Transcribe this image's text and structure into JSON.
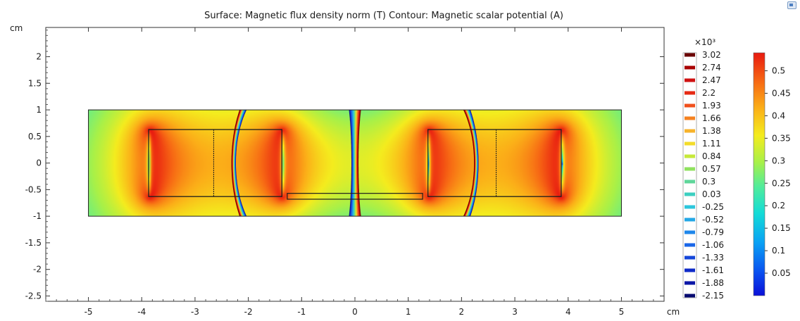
{
  "chart_data": {
    "type": "heatmap",
    "title": "Surface: Magnetic flux density norm (T)  Contour: Magnetic scalar potential (A)",
    "x_unit": "cm",
    "y_unit": "cm",
    "xlim": [
      -5.8,
      5.8
    ],
    "ylim": [
      -2.6,
      2.55
    ],
    "x_ticks": [
      -5,
      -4,
      -3,
      -2,
      -1,
      0,
      1,
      2,
      3,
      4,
      5
    ],
    "y_ticks": [
      2,
      1.5,
      1,
      0.5,
      0,
      -0.5,
      -1,
      -1.5,
      -2,
      -2.5
    ],
    "domain": {
      "x": [
        -5,
        5
      ],
      "y": [
        -1,
        1
      ]
    },
    "magnets": [
      {
        "x": [
          -3.87,
          -1.37
        ],
        "y": [
          -0.63,
          0.63
        ],
        "divider_x": -2.65
      },
      {
        "x": [
          1.37,
          3.87
        ],
        "y": [
          -0.63,
          0.63
        ],
        "divider_x": 2.65
      }
    ],
    "flux_plate": {
      "x": [
        -1.27,
        1.27
      ],
      "y": [
        -0.68,
        -0.57
      ]
    },
    "surface_legend": {
      "quantity": "Magnetic flux density norm (T)",
      "colormap": "rainbow",
      "ticks": [
        0.5,
        0.45,
        0.4,
        0.35,
        0.3,
        0.25,
        0.2,
        0.15,
        0.1,
        0.05
      ],
      "range": [
        0.0,
        0.54
      ]
    },
    "contour_legend": {
      "quantity": "Magnetic scalar potential (A)",
      "multiplier": "×10³",
      "levels": [
        3.02,
        2.74,
        2.47,
        2.2,
        1.93,
        1.66,
        1.38,
        1.11,
        0.84,
        0.57,
        0.3,
        0.03,
        -0.25,
        -0.52,
        -0.79,
        -1.06,
        -1.33,
        -1.61,
        -1.88,
        -2.15
      ],
      "level_labels": [
        "3.02",
        "2.74",
        "2.47",
        "2.2",
        "1.93",
        "1.66",
        "1.38",
        "1.11",
        "0.84",
        "0.57",
        "0.3",
        "0.03",
        "-0.25",
        "-0.52",
        "-0.79",
        "-1.06",
        "-1.33",
        "-1.61",
        "-1.88",
        "-2.15"
      ],
      "colors": [
        "#6b0000",
        "#a80000",
        "#cf1010",
        "#e62a14",
        "#f0501c",
        "#f58220",
        "#f7b32b",
        "#f3dc2a",
        "#c6e83a",
        "#8fe25e",
        "#5fd69a",
        "#3ccfc0",
        "#2cc6dc",
        "#24a8e6",
        "#1e86ea",
        "#1966e8",
        "#1446d9",
        "#0e2ac8",
        "#0a16a6",
        "#060a70"
      ]
    },
    "grid": false,
    "colors": {
      "plot_bg": "#ffffff",
      "frame": "#333333",
      "magnet_outline": "#1e1e1e"
    }
  }
}
